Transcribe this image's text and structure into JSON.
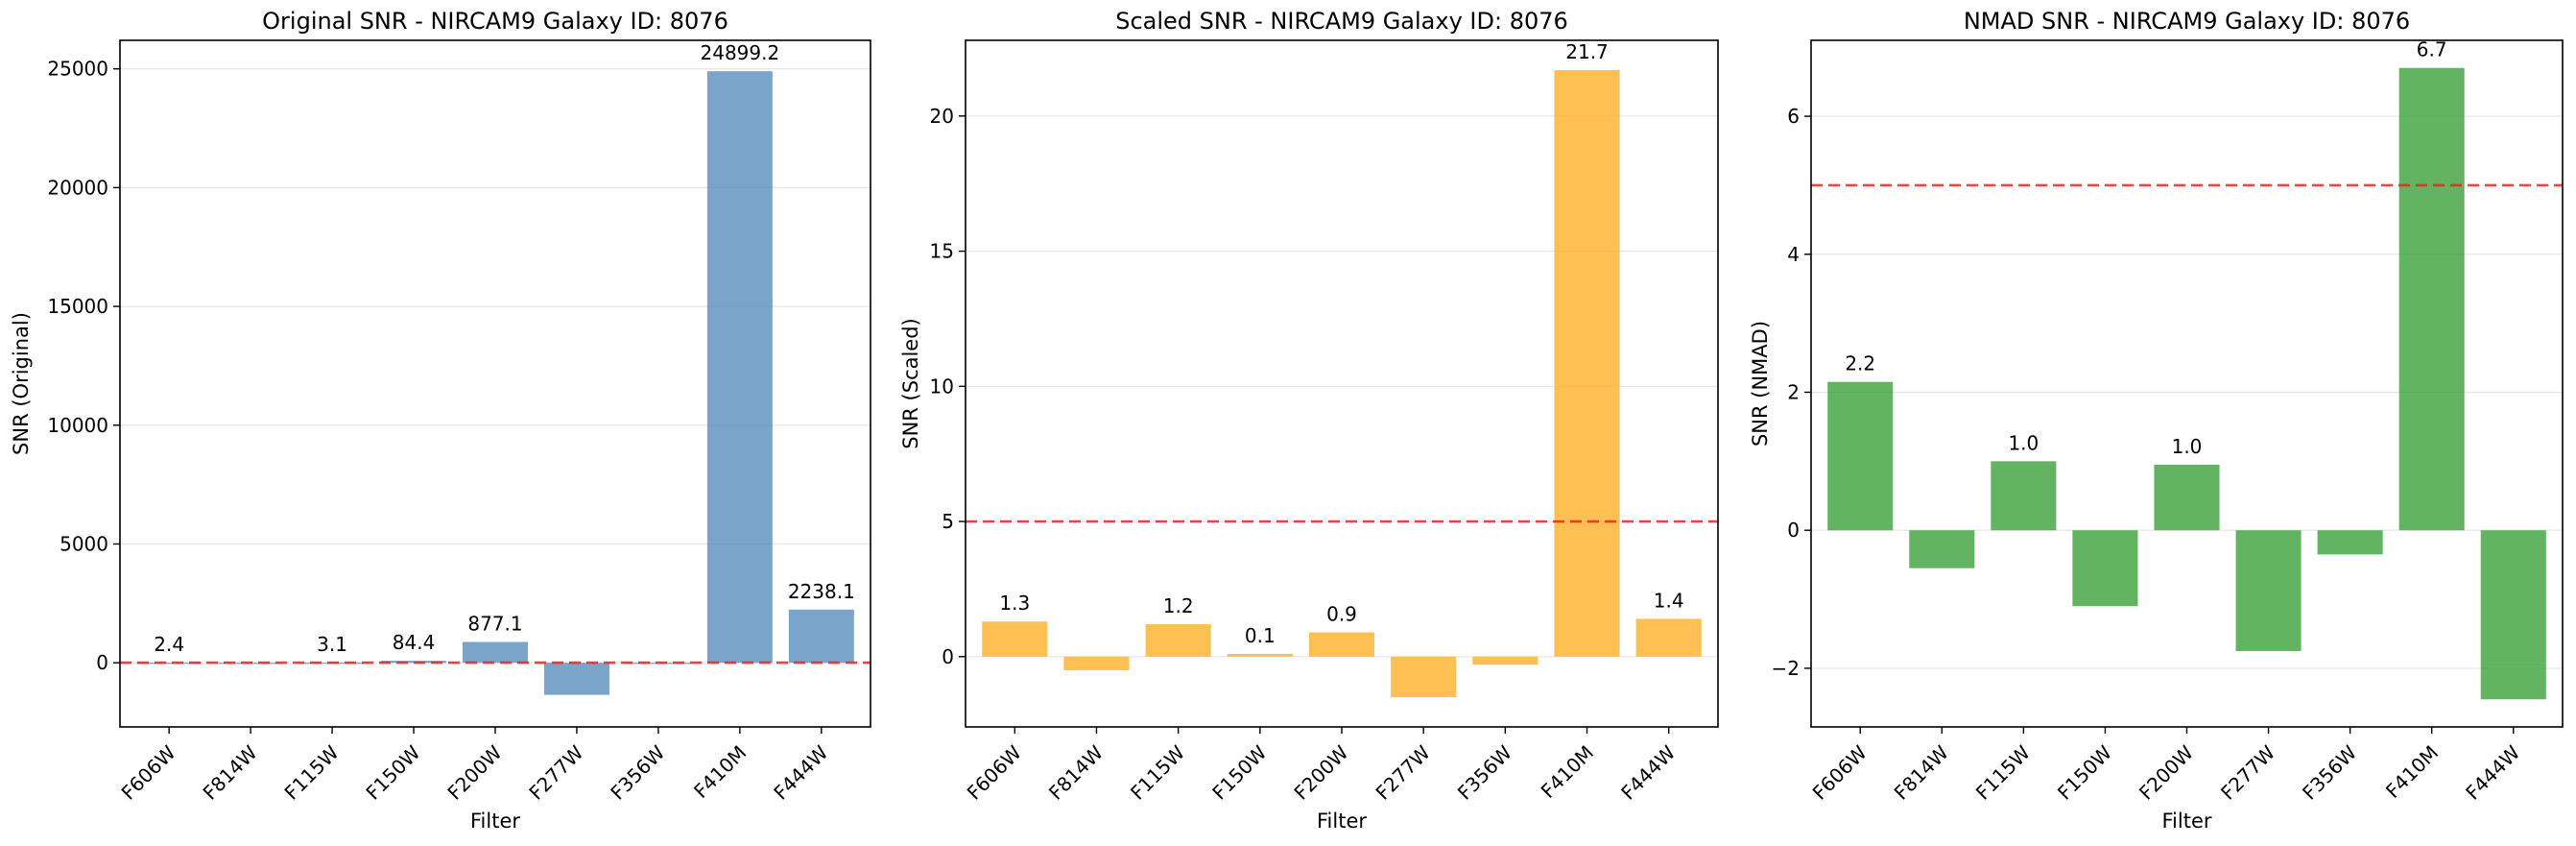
{
  "chart_data": [
    {
      "type": "bar",
      "title": "Original SNR - NIRCAM9 Galaxy ID: 8076",
      "xlabel": "Filter",
      "ylabel": "SNR (Original)",
      "categories": [
        "F606W",
        "F814W",
        "F115W",
        "F150W",
        "F200W",
        "F277W",
        "F356W",
        "F410M",
        "F444W"
      ],
      "values": [
        2.4,
        -10,
        3.1,
        84.4,
        877.1,
        -1350,
        -10,
        24899.2,
        2238.1
      ],
      "data_labels": [
        "2.4",
        "",
        "3.1",
        "84.4",
        "877.1",
        "",
        "",
        "24899.2",
        "2238.1"
      ],
      "yticks": [
        0,
        5000,
        10000,
        15000,
        20000,
        25000
      ],
      "ytick_labels": [
        "0",
        "5000",
        "10000",
        "15000",
        "20000",
        "25000"
      ],
      "ylim": [
        -2700,
        26200
      ],
      "threshold": 5,
      "bar_color": "#4f86b9",
      "grid": "y"
    },
    {
      "type": "bar",
      "title": "Scaled SNR - NIRCAM9 Galaxy ID: 8076",
      "xlabel": "Filter",
      "ylabel": "SNR (Scaled)",
      "categories": [
        "F606W",
        "F814W",
        "F115W",
        "F150W",
        "F200W",
        "F277W",
        "F356W",
        "F410M",
        "F444W"
      ],
      "values": [
        1.3,
        -0.5,
        1.2,
        0.1,
        0.9,
        -1.5,
        -0.3,
        21.7,
        1.4
      ],
      "data_labels": [
        "1.3",
        "",
        "1.2",
        "0.1",
        "0.9",
        "",
        "",
        "21.7",
        "1.4"
      ],
      "yticks": [
        0,
        5,
        10,
        15,
        20
      ],
      "ytick_labels": [
        "0",
        "5",
        "10",
        "15",
        "20"
      ],
      "ylim": [
        -2.6,
        22.8
      ],
      "threshold": 5,
      "bar_color": "#ffab1a",
      "grid": "y"
    },
    {
      "type": "bar",
      "title": "NMAD SNR - NIRCAM9 Galaxy ID: 8076",
      "xlabel": "Filter",
      "ylabel": "SNR (NMAD)",
      "categories": [
        "F606W",
        "F814W",
        "F115W",
        "F150W",
        "F200W",
        "F277W",
        "F356W",
        "F410M",
        "F444W"
      ],
      "values": [
        2.15,
        -0.55,
        1.0,
        -1.1,
        0.95,
        -1.75,
        -0.35,
        6.7,
        -2.45
      ],
      "data_labels": [
        "2.2",
        "",
        "1.0",
        "",
        "1.0",
        "",
        "",
        "6.7",
        ""
      ],
      "yticks": [
        -2,
        0,
        2,
        4,
        6
      ],
      "ytick_labels": [
        "−2",
        "0",
        "2",
        "4",
        "6"
      ],
      "ylim": [
        -2.85,
        7.1
      ],
      "threshold": 5,
      "bar_color": "#2e9a2e",
      "grid": "y"
    }
  ],
  "colors": {
    "threshold_line": "#ee2222",
    "grid": "#e6e6e6",
    "axes": "#000000"
  }
}
